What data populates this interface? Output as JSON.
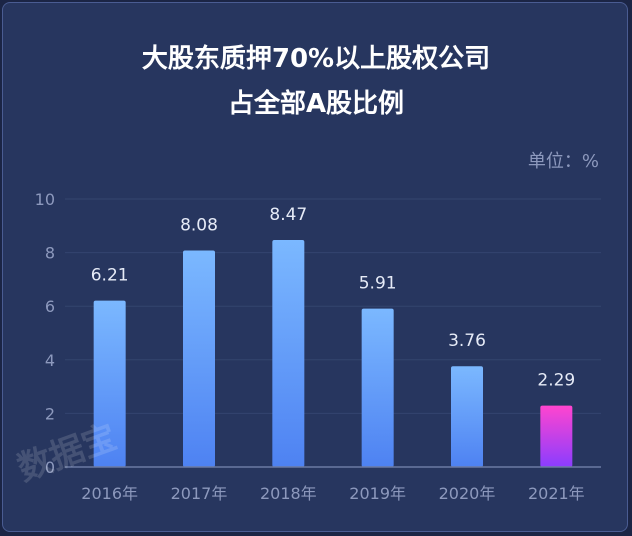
{
  "chart_data": {
    "type": "bar",
    "title_lines": [
      "大股东质押70%以上股权公司",
      "占全部A股比例"
    ],
    "unit_label": "单位：%",
    "categories": [
      "2016年",
      "2017年",
      "2018年",
      "2019年",
      "2020年",
      "2021年"
    ],
    "values": [
      6.21,
      8.08,
      8.47,
      5.91,
      3.76,
      2.29
    ],
    "value_labels": [
      "6.21",
      "8.08",
      "8.47",
      "5.91",
      "3.76",
      "2.29"
    ],
    "ylim": [
      0,
      10
    ],
    "yticks": [
      "0",
      "2",
      "4",
      "6",
      "8",
      "10"
    ],
    "grid": true,
    "highlight_index": 5,
    "colors": {
      "bar_top": "#7bb8ff",
      "bar_bottom": "#4e82f2",
      "highlight_top": "#ff45cf",
      "highlight_bottom": "#8a3dff"
    }
  },
  "watermark": "数据宝"
}
